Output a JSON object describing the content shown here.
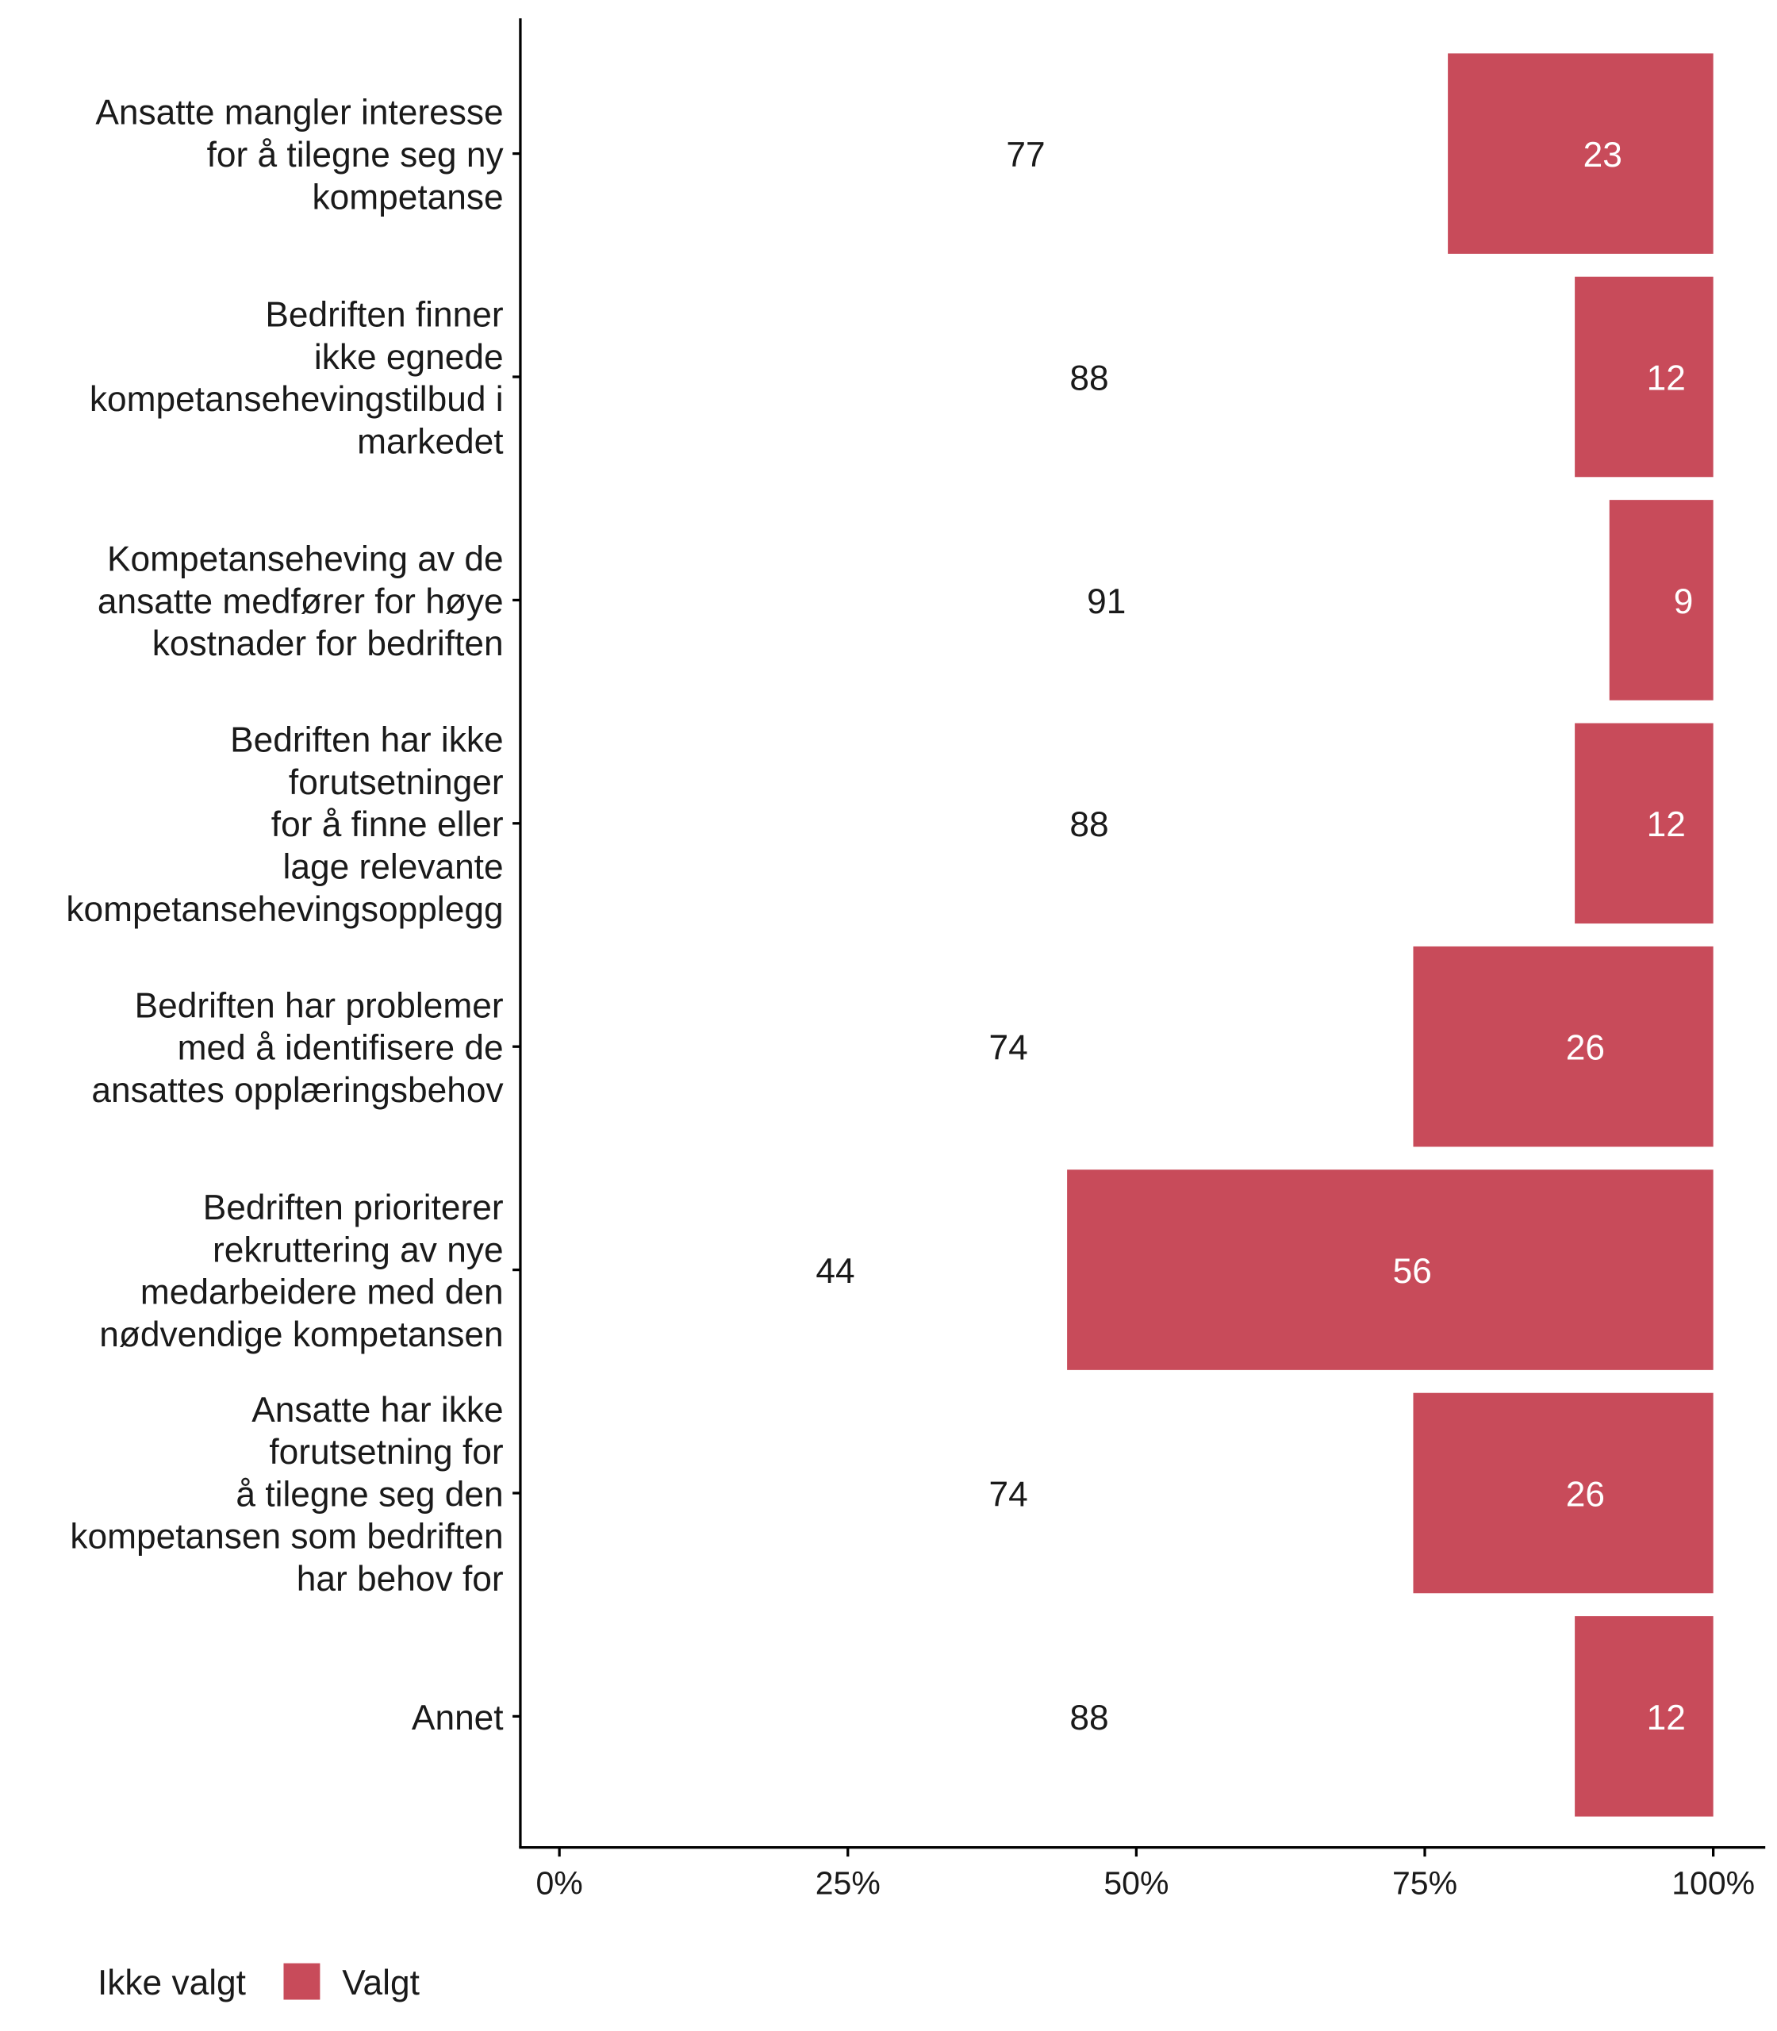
{
  "chart_data": {
    "type": "bar",
    "orientation": "horizontal",
    "stacked": true,
    "categories": [
      [
        "Ansatte mangler interesse",
        "for å tilegne seg ny",
        "kompetanse"
      ],
      [
        "Bedriften finner",
        "ikke egnede",
        "kompetansehevingstilbud i",
        "markedet"
      ],
      [
        "Kompetanseheving av de",
        "ansatte medfører for høye",
        "kostnader for bedriften"
      ],
      [
        "Bedriften har ikke",
        "forutsetninger",
        "for å finne eller",
        "lage relevante",
        "kompetansehevingsopplegg"
      ],
      [
        "Bedriften har problemer",
        "med å identifisere de",
        "ansattes opplæringsbehov"
      ],
      [
        "Bedriften prioriterer",
        "rekruttering av nye",
        "medarbeidere med den",
        "nødvendige kompetansen"
      ],
      [
        "Ansatte har ikke",
        "forutsetning for",
        "å tilegne seg den",
        "kompetansen som bedriften",
        "har behov for"
      ],
      [
        "Annet"
      ]
    ],
    "series": [
      {
        "name": "Ikke valgt",
        "values": [
          77,
          88,
          91,
          88,
          74,
          44,
          74,
          88
        ],
        "color": "#FFFFFF",
        "label_color": "#1a1a1a"
      },
      {
        "name": "Valgt",
        "values": [
          23,
          12,
          9,
          12,
          26,
          56,
          26,
          12
        ],
        "color": "#C84B5A",
        "label_color": "#FFFFFF"
      }
    ],
    "xlim": [
      0,
      100
    ],
    "x_ticks": [
      "0%",
      "25%",
      "50%",
      "75%",
      "100%"
    ],
    "x_tick_values": [
      0,
      25,
      50,
      75,
      100
    ],
    "xlabel": "",
    "ylabel": "",
    "grid": false,
    "legend_position": "bottom-left"
  }
}
